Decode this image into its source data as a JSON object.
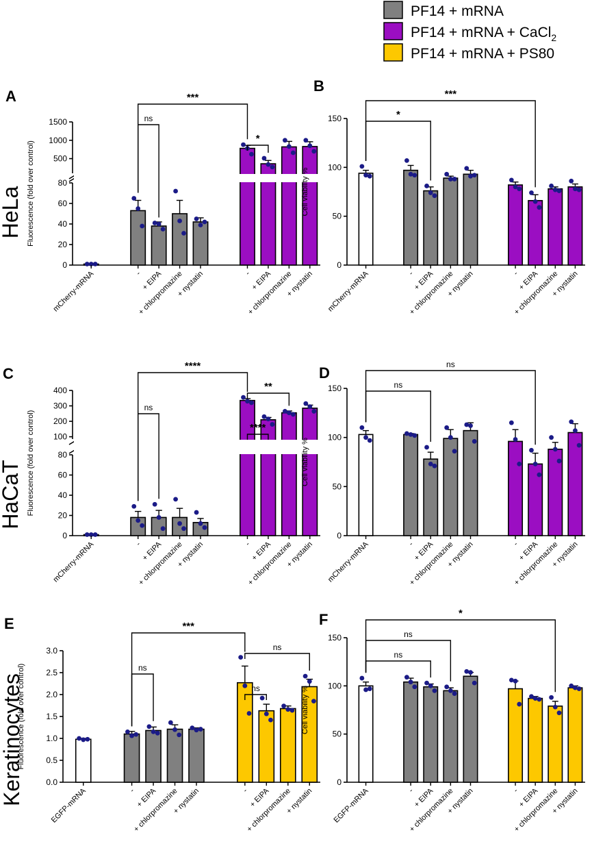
{
  "figure": {
    "legend": [
      {
        "label": "PF14 + mRNA",
        "sub": "",
        "color": "#808080"
      },
      {
        "label": "PF14 + mRNA + CaCl",
        "sub": "2",
        "color": "#9b0ec2"
      },
      {
        "label": "PF14 + mRNA + PS80",
        "sub": "",
        "color": "#fdc800"
      }
    ],
    "row_labels": [
      "HeLa",
      "HaCaT",
      "Keratinocytes"
    ]
  },
  "colors": {
    "control": "#ffffff",
    "pf14": "#808080",
    "cacl2": "#9b0ec2",
    "ps80": "#fdc800",
    "dots": "#1b1b87"
  },
  "chart_data": [
    {
      "panel": "A",
      "type": "bar",
      "broken_axis": true,
      "ylabel": "Fluorescence (fold over control)",
      "lower_ticks": [
        0,
        20,
        40,
        60,
        80
      ],
      "upper_ticks": [
        500,
        1000,
        1500
      ],
      "lower_range": [
        0,
        80
      ],
      "upper_range": [
        100,
        1500
      ],
      "categories": [
        "mCherry-mRNA",
        "-",
        "+ EIPA",
        "+ chlorpromazine",
        "+ nystatin",
        "-",
        "+ EIPA",
        "+ chlorpromazine",
        "+ nystatin"
      ],
      "groups": [
        "control",
        "pf14",
        "pf14",
        "pf14",
        "pf14",
        "cacl2",
        "cacl2",
        "cacl2",
        "cacl2"
      ],
      "values": [
        1,
        53,
        38,
        50,
        42,
        780,
        360,
        820,
        830
      ],
      "errors": [
        0.5,
        10,
        4,
        13,
        4,
        80,
        90,
        150,
        130
      ],
      "points": [
        [
          1,
          1,
          1
        ],
        [
          65,
          55,
          38
        ],
        [
          41,
          40,
          35
        ],
        [
          72,
          43,
          31
        ],
        [
          45,
          39,
          42
        ],
        [
          880,
          780,
          620
        ],
        [
          510,
          340,
          270
        ],
        [
          1000,
          830,
          660
        ],
        [
          1000,
          850,
          700
        ]
      ],
      "brackets": [
        {
          "from": 1,
          "to": 5,
          "label": "***"
        },
        {
          "from": 1,
          "to": 2,
          "label": "ns"
        },
        {
          "from": 5,
          "to": 6,
          "label": "*"
        }
      ]
    },
    {
      "panel": "B",
      "type": "bar",
      "broken_axis": false,
      "ylabel": "Cell viability %",
      "ticks": [
        0,
        50,
        100,
        150
      ],
      "ylim": [
        0,
        150
      ],
      "categories": [
        "mCherry-mRNA",
        "-",
        "+ EIPA",
        "+ chlorpromazine",
        "+ nystatin",
        "-",
        "+ EIPA",
        "+ chlorpromazine",
        "+ nystatin"
      ],
      "groups": [
        "control",
        "pf14",
        "pf14",
        "pf14",
        "pf14",
        "cacl2",
        "cacl2",
        "cacl2",
        "cacl2"
      ],
      "values": [
        94,
        97,
        76,
        89,
        93,
        82,
        66,
        78,
        80
      ],
      "errors": [
        3,
        5,
        4,
        2,
        4,
        3,
        6,
        2,
        3
      ],
      "points": [
        [
          101,
          92,
          91
        ],
        [
          107,
          93,
          92
        ],
        [
          81,
          74,
          71
        ],
        [
          93,
          88,
          88
        ],
        [
          99,
          91,
          92
        ],
        [
          87,
          80,
          78
        ],
        [
          74,
          65,
          59
        ],
        [
          81,
          77,
          76
        ],
        [
          86,
          78,
          77
        ]
      ],
      "brackets": [
        {
          "from": 0,
          "to": 6,
          "label": "***"
        },
        {
          "from": 0,
          "to": 2,
          "label": "*"
        }
      ]
    },
    {
      "panel": "C",
      "type": "bar",
      "broken_axis": true,
      "ylabel": "Fluorescence (fold over control)",
      "lower_ticks": [
        0,
        20,
        40,
        60,
        80
      ],
      "upper_ticks": [
        100,
        200,
        300,
        400
      ],
      "lower_range": [
        0,
        80
      ],
      "upper_range": [
        85,
        400
      ],
      "categories": [
        "mCherry-mRNA",
        "-",
        "+ EIPA",
        "+ chlorpromazine",
        "+ nystatin",
        "-",
        "+ EIPA",
        "+ chlorpromazine",
        "+ nystatin"
      ],
      "groups": [
        "control",
        "pf14",
        "pf14",
        "pf14",
        "pf14",
        "cacl2",
        "cacl2",
        "cacl2",
        "cacl2"
      ],
      "values": [
        1,
        18,
        18,
        18,
        13,
        335,
        210,
        255,
        285
      ],
      "errors": [
        0.5,
        6,
        7,
        9,
        4,
        12,
        15,
        12,
        20
      ],
      "points": [
        [
          1,
          1,
          1
        ],
        [
          29,
          15,
          10
        ],
        [
          31,
          18,
          7
        ],
        [
          36,
          12,
          7
        ],
        [
          23,
          12,
          8
        ],
        [
          355,
          330,
          320
        ],
        [
          230,
          215,
          180
        ],
        [
          265,
          255,
          245
        ],
        [
          315,
          295,
          265
        ]
      ],
      "brackets": [
        {
          "from": 1,
          "to": 5,
          "label": "****"
        },
        {
          "from": 1,
          "to": 2,
          "label": "ns"
        },
        {
          "from": 5,
          "to": 7,
          "label": "**"
        },
        {
          "from": 5,
          "to": 6,
          "label": "****"
        }
      ]
    },
    {
      "panel": "D",
      "type": "bar",
      "broken_axis": false,
      "ylabel": "Cell viability %",
      "ticks": [
        0,
        50,
        100,
        150
      ],
      "ylim": [
        0,
        150
      ],
      "categories": [
        "mCherry-mRNA",
        "-",
        "+ EIPA",
        "+ chlorpromazine",
        "+ nystatin",
        "-",
        "+ EIPA",
        "+ chlorpromazine",
        "+ nystatin"
      ],
      "groups": [
        "control",
        "pf14",
        "pf14",
        "pf14",
        "pf14",
        "cacl2",
        "cacl2",
        "cacl2",
        "cacl2"
      ],
      "values": [
        103,
        103,
        78,
        99,
        107,
        96,
        73,
        88,
        105
      ],
      "errors": [
        4,
        1,
        7,
        9,
        8,
        12,
        11,
        7,
        9
      ],
      "points": [
        [
          110,
          100,
          97
        ],
        [
          104,
          103,
          102
        ],
        [
          90,
          73,
          71
        ],
        [
          110,
          100,
          86
        ],
        [
          113,
          112,
          96
        ],
        [
          115,
          98,
          73
        ],
        [
          87,
          73,
          62
        ],
        [
          100,
          88,
          76
        ],
        [
          116,
          107,
          92
        ]
      ],
      "brackets": [
        {
          "from": 0,
          "to": 6,
          "label": "ns"
        },
        {
          "from": 0,
          "to": 2,
          "label": "ns"
        }
      ]
    },
    {
      "panel": "E",
      "type": "bar",
      "broken_axis": false,
      "ylabel": "Fluorescence (fold over control)",
      "ticks": [
        0.0,
        0.5,
        1.0,
        1.5,
        2.0,
        2.5,
        3.0
      ],
      "tick_labels": [
        "0.0",
        "0.5",
        "1.0",
        "1.5",
        "2.0",
        "2.5",
        "3.0"
      ],
      "ylim": [
        0,
        3.0
      ],
      "categories": [
        "EGFP-mRNA",
        "-",
        "+ EIPA",
        "+ chlorpromazine",
        "+ nystatin",
        "-",
        "+ EIPA",
        "+ chlorpromazine",
        "+ nystatin"
      ],
      "groups": [
        "control",
        "pf14",
        "pf14",
        "pf14",
        "pf14",
        "ps80",
        "ps80",
        "ps80",
        "ps80"
      ],
      "values": [
        0.98,
        1.1,
        1.18,
        1.21,
        1.21,
        2.27,
        1.63,
        1.68,
        2.18
      ],
      "errors": [
        0.02,
        0.06,
        0.08,
        0.1,
        0.03,
        0.38,
        0.15,
        0.06,
        0.17
      ],
      "points": [
        [
          1.0,
          0.97,
          0.98
        ],
        [
          1.15,
          1.06,
          1.09
        ],
        [
          1.27,
          1.15,
          1.12
        ],
        [
          1.36,
          1.2,
          1.08
        ],
        [
          1.24,
          1.19,
          1.21
        ],
        [
          2.85,
          2.2,
          1.57
        ],
        [
          1.92,
          1.56,
          1.42
        ],
        [
          1.74,
          1.66,
          1.64
        ],
        [
          2.42,
          2.3,
          1.85
        ]
      ],
      "brackets": [
        {
          "from": 1,
          "to": 5,
          "label": "***"
        },
        {
          "from": 1,
          "to": 2,
          "label": "ns"
        },
        {
          "from": 5,
          "to": 8,
          "label": "ns"
        },
        {
          "from": 5,
          "to": 6,
          "label": "ns"
        }
      ]
    },
    {
      "panel": "F",
      "type": "bar",
      "broken_axis": false,
      "ylabel": "Cell viability %",
      "ticks": [
        0,
        50,
        100,
        150
      ],
      "ylim": [
        0,
        150
      ],
      "categories": [
        "EGFP-mRNA",
        "-",
        "+ EIPA",
        "+ chlorpromazine",
        "+ nystatin",
        "-",
        "+ EIPA",
        "+ chlorpromazine",
        "+ nystatin"
      ],
      "groups": [
        "control",
        "pf14",
        "pf14",
        "pf14",
        "pf14",
        "ps80",
        "ps80",
        "ps80",
        "ps80"
      ],
      "values": [
        100,
        104,
        99,
        95,
        110,
        97,
        87,
        79,
        98
      ],
      "errors": [
        4,
        4,
        3,
        3,
        4,
        8,
        2,
        5,
        2
      ],
      "points": [
        [
          108,
          96,
          97
        ],
        [
          109,
          104,
          99
        ],
        [
          103,
          100,
          95
        ],
        [
          99,
          95,
          92
        ],
        [
          115,
          114,
          103
        ],
        [
          106,
          105,
          81
        ],
        [
          89,
          87,
          86
        ],
        [
          88,
          78,
          72
        ],
        [
          100,
          98,
          97
        ]
      ],
      "brackets": [
        {
          "from": 0,
          "to": 7,
          "label": "*"
        },
        {
          "from": 0,
          "to": 3,
          "label": "ns"
        },
        {
          "from": 0,
          "to": 2,
          "label": "ns"
        }
      ]
    }
  ]
}
